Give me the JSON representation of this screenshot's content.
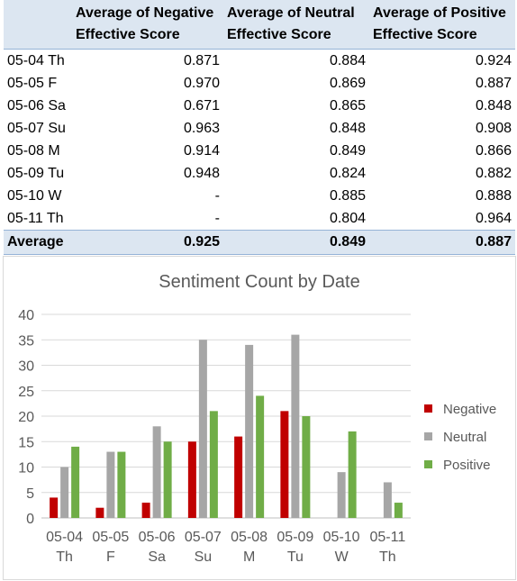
{
  "table": {
    "headers": [
      "",
      "Average of Negative Effective Score",
      "Average of Neutral Effective Score",
      "Average of Positive Effective Score"
    ],
    "rows": [
      [
        "05-04 Th",
        "0.871",
        "0.884",
        "0.924"
      ],
      [
        "05-05 F",
        "0.970",
        "0.869",
        "0.887"
      ],
      [
        "05-06 Sa",
        "0.671",
        "0.865",
        "0.848"
      ],
      [
        "05-07 Su",
        "0.963",
        "0.848",
        "0.908"
      ],
      [
        "05-08 M",
        "0.914",
        "0.849",
        "0.866"
      ],
      [
        "05-09 Tu",
        "0.948",
        "0.824",
        "0.882"
      ],
      [
        "05-10 W",
        "-",
        "0.885",
        "0.888"
      ],
      [
        "05-11 Th",
        "-",
        "0.804",
        "0.964"
      ]
    ],
    "total": [
      "Average",
      "0.925",
      "0.849",
      "0.887"
    ]
  },
  "chart_data": {
    "type": "bar",
    "title": "Sentiment Count by Date",
    "categories": [
      "05-04 Th",
      "05-05 F",
      "05-06 Sa",
      "05-07 Su",
      "05-08 M",
      "05-09 Tu",
      "05-10 W",
      "05-11 Th"
    ],
    "category_lines": [
      [
        "05-04",
        "Th"
      ],
      [
        "05-05",
        "F"
      ],
      [
        "05-06",
        "Sa"
      ],
      [
        "05-07",
        "Su"
      ],
      [
        "05-08",
        "M"
      ],
      [
        "05-09",
        "Tu"
      ],
      [
        "05-10",
        "W"
      ],
      [
        "05-11",
        "Th"
      ]
    ],
    "series": [
      {
        "name": "Negative",
        "color": "#c00000",
        "values": [
          4,
          2,
          3,
          15,
          16,
          21,
          null,
          null
        ]
      },
      {
        "name": "Neutral",
        "color": "#a6a6a6",
        "values": [
          10,
          13,
          18,
          35,
          34,
          36,
          9,
          7
        ]
      },
      {
        "name": "Positive",
        "color": "#70ad47",
        "values": [
          14,
          13,
          15,
          21,
          24,
          20,
          17,
          3
        ]
      }
    ],
    "ylim": [
      0,
      40
    ],
    "yticks": [
      0,
      5,
      10,
      15,
      20,
      25,
      30,
      35,
      40
    ],
    "grid": true,
    "legend": "right"
  }
}
